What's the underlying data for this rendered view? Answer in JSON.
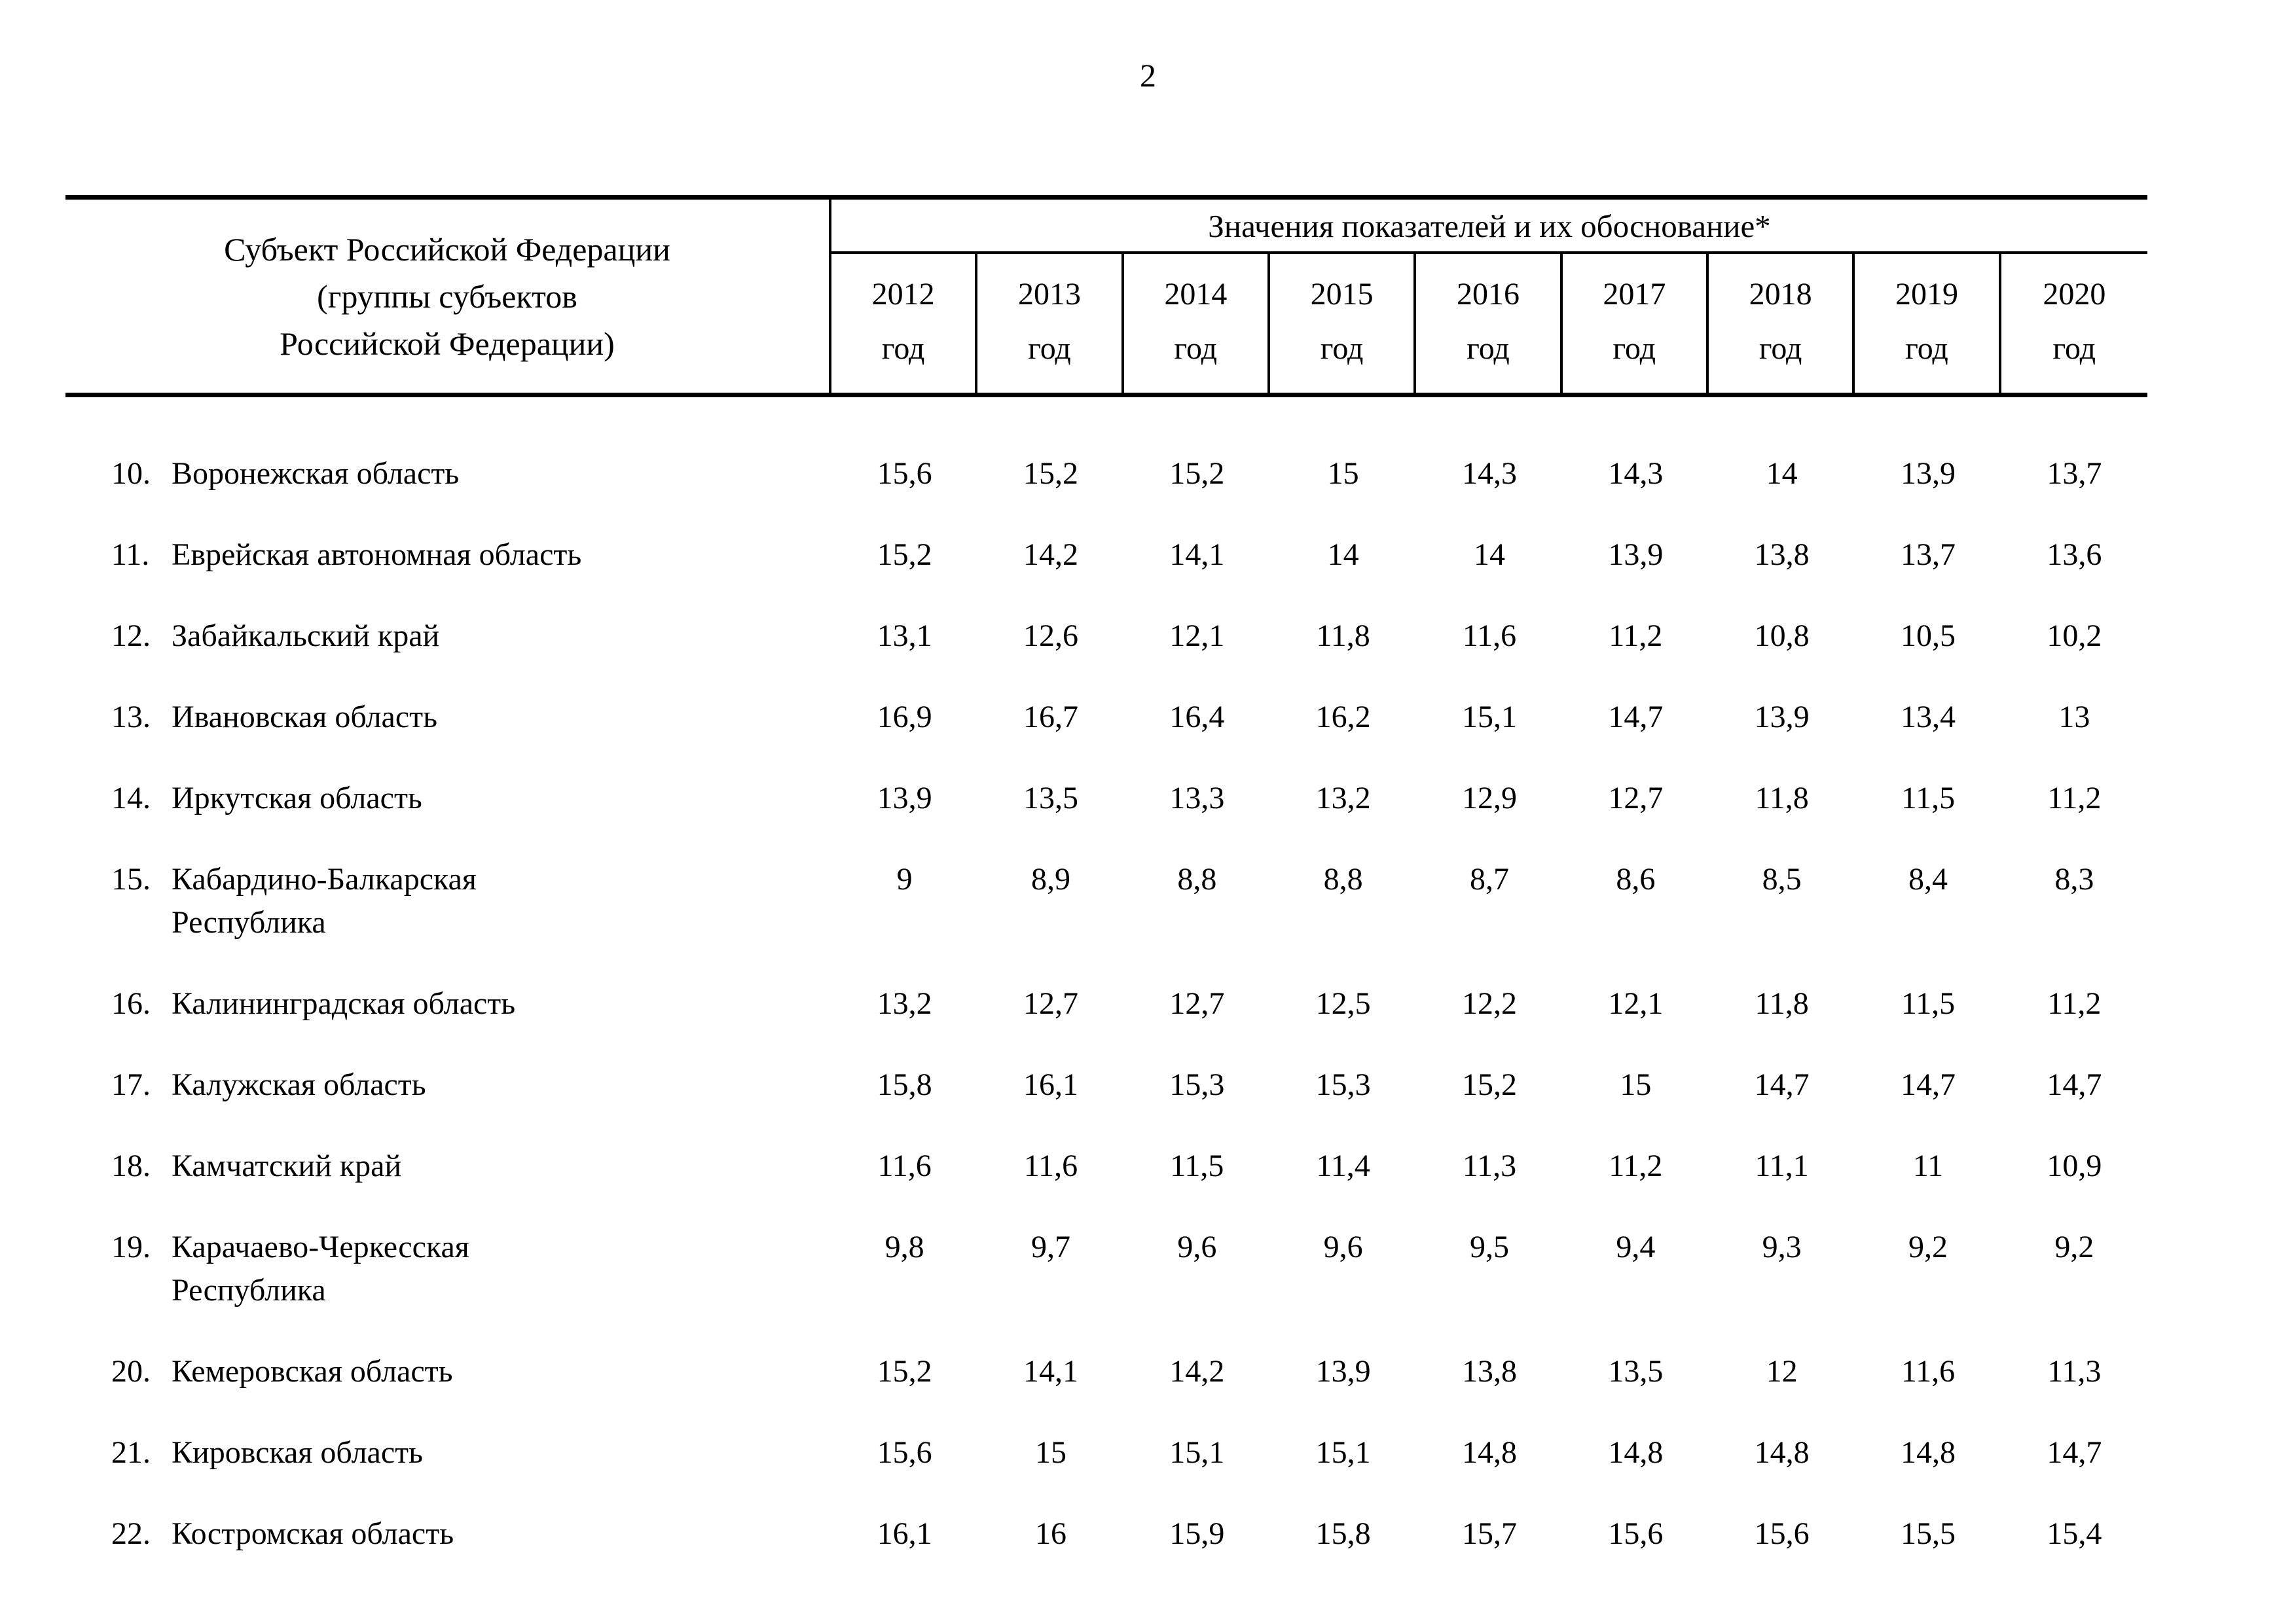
{
  "page": {
    "number": "2"
  },
  "table": {
    "col1_header": "Субъект Российской Федерации\n(группы субъектов\nРоссийской Федерации)",
    "values_header": "Значения показателей и их обоснование*",
    "years": [
      "2012",
      "2013",
      "2014",
      "2015",
      "2016",
      "2017",
      "2018",
      "2019",
      "2020"
    ],
    "year_suffix": "год",
    "rows": [
      {
        "num": "10.",
        "name": "Воронежская область",
        "values": [
          "15,6",
          "15,2",
          "15,2",
          "15",
          "14,3",
          "14,3",
          "14",
          "13,9",
          "13,7"
        ]
      },
      {
        "num": "11.",
        "name": "Еврейская автономная область",
        "values": [
          "15,2",
          "14,2",
          "14,1",
          "14",
          "14",
          "13,9",
          "13,8",
          "13,7",
          "13,6"
        ]
      },
      {
        "num": "12.",
        "name": "Забайкальский край",
        "values": [
          "13,1",
          "12,6",
          "12,1",
          "11,8",
          "11,6",
          "11,2",
          "10,8",
          "10,5",
          "10,2"
        ]
      },
      {
        "num": "13.",
        "name": "Ивановская область",
        "values": [
          "16,9",
          "16,7",
          "16,4",
          "16,2",
          "15,1",
          "14,7",
          "13,9",
          "13,4",
          "13"
        ]
      },
      {
        "num": "14.",
        "name": "Иркутская область",
        "values": [
          "13,9",
          "13,5",
          "13,3",
          "13,2",
          "12,9",
          "12,7",
          "11,8",
          "11,5",
          "11,2"
        ]
      },
      {
        "num": "15.",
        "name": "Кабардино-Балкарская\nРеспублика",
        "values": [
          "9",
          "8,9",
          "8,8",
          "8,8",
          "8,7",
          "8,6",
          "8,5",
          "8,4",
          "8,3"
        ]
      },
      {
        "num": "16.",
        "name": "Калининградская область",
        "values": [
          "13,2",
          "12,7",
          "12,7",
          "12,5",
          "12,2",
          "12,1",
          "11,8",
          "11,5",
          "11,2"
        ]
      },
      {
        "num": "17.",
        "name": "Калужская область",
        "values": [
          "15,8",
          "16,1",
          "15,3",
          "15,3",
          "15,2",
          "15",
          "14,7",
          "14,7",
          "14,7"
        ]
      },
      {
        "num": "18.",
        "name": "Камчатский край",
        "values": [
          "11,6",
          "11,6",
          "11,5",
          "11,4",
          "11,3",
          "11,2",
          "11,1",
          "11",
          "10,9"
        ]
      },
      {
        "num": "19.",
        "name": "Карачаево-Черкесская\nРеспублика",
        "values": [
          "9,8",
          "9,7",
          "9,6",
          "9,6",
          "9,5",
          "9,4",
          "9,3",
          "9,2",
          "9,2"
        ]
      },
      {
        "num": "20.",
        "name": "Кемеровская область",
        "values": [
          "15,2",
          "14,1",
          "14,2",
          "13,9",
          "13,8",
          "13,5",
          "12",
          "11,6",
          "11,3"
        ]
      },
      {
        "num": "21.",
        "name": "Кировская область",
        "values": [
          "15,6",
          "15",
          "15,1",
          "15,1",
          "14,8",
          "14,8",
          "14,8",
          "14,8",
          "14,7"
        ]
      },
      {
        "num": "22.",
        "name": "Костромская область",
        "values": [
          "16,1",
          "16",
          "15,9",
          "15,8",
          "15,7",
          "15,6",
          "15,6",
          "15,5",
          "15,4"
        ]
      }
    ]
  }
}
